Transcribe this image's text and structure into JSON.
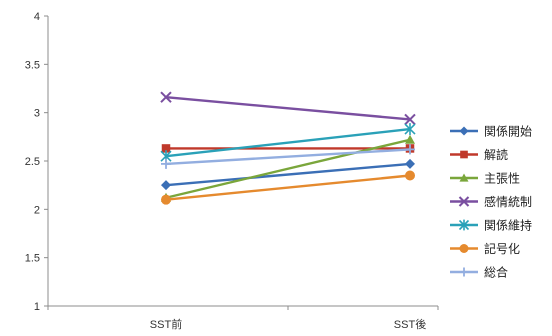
{
  "chart_data": {
    "type": "line",
    "title": "",
    "xlabel": "",
    "ylabel": "",
    "x": [
      "SST前",
      "SST後"
    ],
    "ylim": [
      1,
      4
    ],
    "yticks": [
      "1",
      "1.5",
      "2",
      "2.5",
      "3",
      "3.5",
      "4"
    ],
    "grid": false,
    "legend_position": "right",
    "series": [
      {
        "name": "関係開始",
        "values": [
          2.25,
          2.47
        ],
        "color": "#3b6fb6",
        "marker": "diamond"
      },
      {
        "name": "解読",
        "values": [
          2.63,
          2.63
        ],
        "color": "#c0392b",
        "marker": "square"
      },
      {
        "name": "主張性",
        "values": [
          2.12,
          2.72
        ],
        "color": "#7aa63b",
        "marker": "triangle"
      },
      {
        "name": "感情統制",
        "values": [
          3.16,
          2.93
        ],
        "color": "#7a4fa0",
        "marker": "x"
      },
      {
        "name": "関係維持",
        "values": [
          2.55,
          2.83
        ],
        "color": "#2aa1b8",
        "marker": "star"
      },
      {
        "name": "記号化",
        "values": [
          2.1,
          2.35
        ],
        "color": "#e58a2e",
        "marker": "circle"
      },
      {
        "name": "総合",
        "values": [
          2.47,
          2.62
        ],
        "color": "#93aee0",
        "marker": "plus"
      }
    ]
  }
}
